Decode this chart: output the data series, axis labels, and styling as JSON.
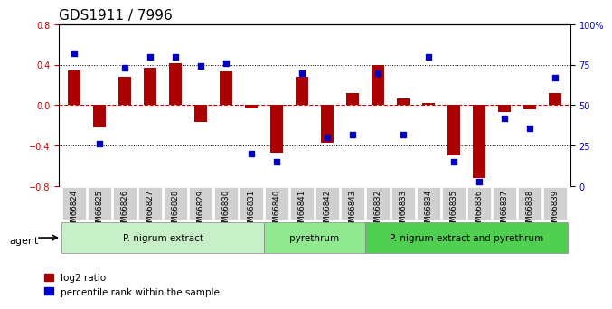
{
  "title": "GDS1911 / 7996",
  "samples": [
    "GSM66824",
    "GSM66825",
    "GSM66826",
    "GSM66827",
    "GSM66828",
    "GSM66829",
    "GSM66830",
    "GSM66831",
    "GSM66840",
    "GSM66841",
    "GSM66842",
    "GSM66843",
    "GSM66832",
    "GSM66833",
    "GSM66834",
    "GSM66835",
    "GSM66836",
    "GSM66837",
    "GSM66838",
    "GSM66839"
  ],
  "log2_ratio": [
    0.34,
    -0.22,
    0.28,
    0.37,
    0.41,
    -0.17,
    0.33,
    -0.03,
    -0.47,
    0.28,
    -0.37,
    0.12,
    0.4,
    0.07,
    0.02,
    -0.5,
    -0.72,
    -0.07,
    -0.04,
    0.12
  ],
  "percentile": [
    82,
    26,
    73,
    80,
    80,
    74,
    76,
    20,
    15,
    70,
    30,
    32,
    70,
    32,
    80,
    15,
    3,
    42,
    36,
    67
  ],
  "groups": [
    {
      "label": "P. nigrum extract",
      "start": 0,
      "end": 8,
      "color": "#c8f0c8"
    },
    {
      "label": "pyrethrum",
      "start": 8,
      "end": 12,
      "color": "#90e890"
    },
    {
      "label": "P. nigrum extract and pyrethrum",
      "start": 12,
      "end": 20,
      "color": "#50d050"
    }
  ],
  "bar_color": "#aa0000",
  "dot_color": "#0000cc",
  "zero_line_color": "#cc0000",
  "ylim_left": [
    -0.8,
    0.8
  ],
  "ylim_right": [
    0,
    100
  ],
  "yticks_left": [
    -0.8,
    -0.4,
    0.0,
    0.4,
    0.8
  ],
  "yticks_right": [
    0,
    25,
    50,
    75,
    100
  ],
  "ytick_labels_right": [
    "0",
    "25",
    "50",
    "75",
    "100%"
  ],
  "hlines": [
    -0.4,
    0.0,
    0.4
  ],
  "legend_red": "log2 ratio",
  "legend_blue": "percentile rank within the sample",
  "agent_label": "agent"
}
